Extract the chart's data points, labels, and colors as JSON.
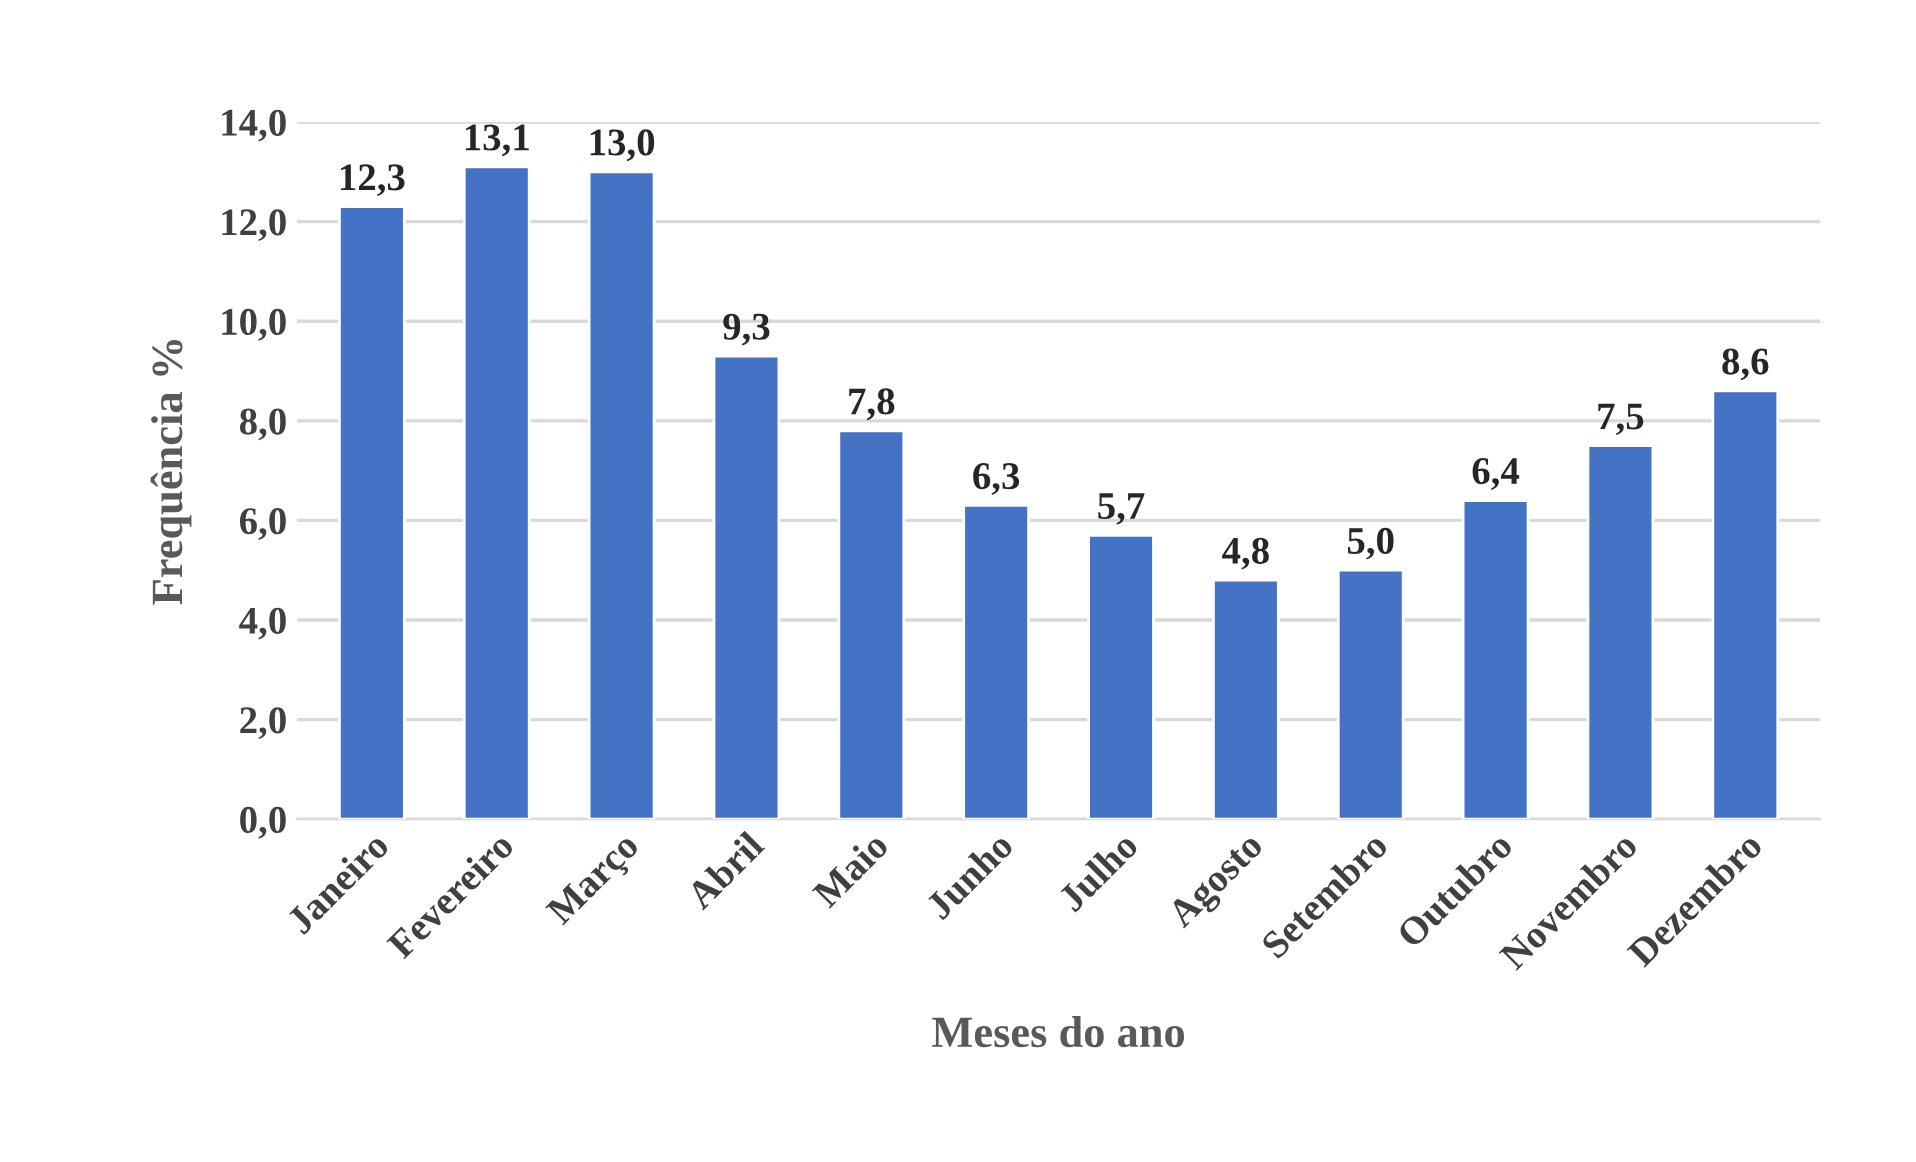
{
  "chart_data": {
    "type": "bar",
    "xlabel": "Meses do ano",
    "ylabel": "Frequência %",
    "categories": [
      "Janeiro",
      "Fevereiro",
      "Março",
      "Abril",
      "Maio",
      "Junho",
      "Julho",
      "Agosto",
      "Setembro",
      "Outubro",
      "Novembro",
      "Dezembro"
    ],
    "values": [
      12.3,
      13.1,
      13.0,
      9.3,
      7.8,
      6.3,
      5.7,
      4.8,
      5.0,
      6.4,
      7.5,
      8.6
    ],
    "value_labels": [
      "12,3",
      "13,1",
      "13,0",
      "9,3",
      "7,8",
      "6,3",
      "5,7",
      "4,8",
      "5,0",
      "6,4",
      "7,5",
      "8,6"
    ],
    "color": "#4472c4",
    "ylim": [
      0,
      14
    ],
    "yticks": [
      {
        "value": 0,
        "label": "0,0"
      },
      {
        "value": 2,
        "label": "2,0"
      },
      {
        "value": 4,
        "label": "4,0"
      },
      {
        "value": 6,
        "label": "6,0"
      },
      {
        "value": 8,
        "label": "8,0"
      },
      {
        "value": 10,
        "label": "10,0"
      },
      {
        "value": 12,
        "label": "12,0"
      },
      {
        "value": 14,
        "label": "14,0"
      }
    ],
    "grid": "y"
  }
}
